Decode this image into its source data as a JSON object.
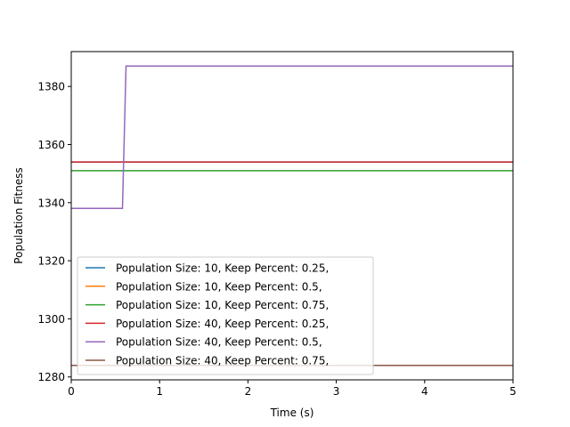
{
  "chart_data": {
    "type": "line",
    "title": "",
    "xlabel": "Time (s)",
    "ylabel": "Population Fitness",
    "xlim": [
      0,
      5
    ],
    "ylim": [
      1279,
      1392
    ],
    "xticks": [
      0,
      1,
      2,
      3,
      4,
      5
    ],
    "yticks": [
      1280,
      1300,
      1320,
      1340,
      1360,
      1380
    ],
    "grid": false,
    "legend_position": "lower-left",
    "series": [
      {
        "name": "Population Size: 10, Keep Percent: 0.25,",
        "color": "#1f77b4",
        "x": [
          0,
          5
        ],
        "y": [
          1354,
          1354
        ]
      },
      {
        "name": "Population Size: 10, Keep Percent: 0.5,",
        "color": "#ff7f0e",
        "x": [
          0,
          5
        ],
        "y": [
          1284,
          1284
        ]
      },
      {
        "name": "Population Size: 10, Keep Percent: 0.75,",
        "color": "#2ca02c",
        "x": [
          0,
          5
        ],
        "y": [
          1351,
          1351
        ]
      },
      {
        "name": "Population Size: 40, Keep Percent: 0.25,",
        "color": "#d62728",
        "x": [
          0,
          5
        ],
        "y": [
          1354,
          1354
        ]
      },
      {
        "name": "Population Size: 40, Keep Percent: 0.5,",
        "color": "#9467bd",
        "x": [
          0,
          0.58,
          0.62,
          5
        ],
        "y": [
          1338,
          1338,
          1387,
          1387
        ]
      },
      {
        "name": "Population Size: 40, Keep Percent: 0.75,",
        "color": "#8c564b",
        "x": [
          0,
          5
        ],
        "y": [
          1284,
          1284
        ]
      }
    ]
  }
}
